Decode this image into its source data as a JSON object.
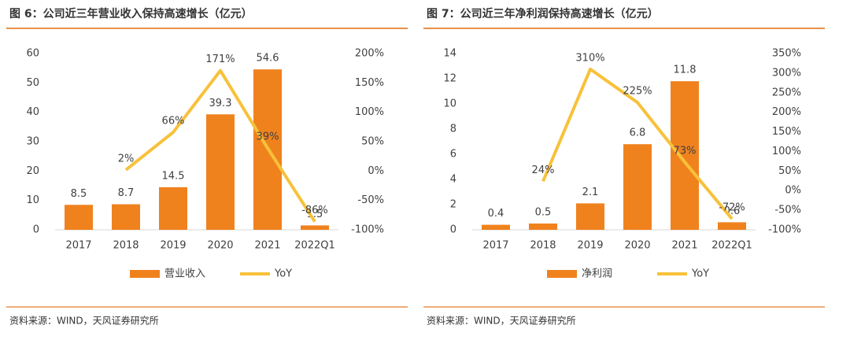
{
  "chart_data": [
    {
      "type": "bar",
      "title": "图 6：公司近三年营业收入保持高速增长（亿元）",
      "categories": [
        "2017",
        "2018",
        "2019",
        "2020",
        "2021",
        "2022Q1"
      ],
      "series": [
        {
          "name": "营业收入",
          "color": "#f0821e",
          "values": [
            8.5,
            8.7,
            14.5,
            39.3,
            54.6,
            1.5
          ]
        },
        {
          "name": "YoY",
          "type": "line",
          "axis": "y2",
          "color": "#f7c13a",
          "values": [
            null,
            2,
            66,
            171,
            39,
            -86
          ],
          "value_labels": [
            null,
            "2%",
            "66%",
            "171%",
            "39%",
            "-86%"
          ]
        }
      ],
      "ylim": [
        0,
        60
      ],
      "yticks": [
        0,
        10,
        20,
        30,
        40,
        50,
        60
      ],
      "y2lim": [
        -100,
        200
      ],
      "y2ticks": [
        {
          "value": -100,
          "label": "-100%"
        },
        {
          "value": -50,
          "label": "-50%"
        },
        {
          "value": 0,
          "label": "0%"
        },
        {
          "value": 50,
          "label": "50%"
        },
        {
          "value": 100,
          "label": "100%"
        },
        {
          "value": 150,
          "label": "150%"
        },
        {
          "value": 200,
          "label": "200%"
        }
      ],
      "source": "资料来源：WIND，天风证券研究所"
    },
    {
      "type": "bar",
      "title": "图 7：公司近三年净利润保持高速增长（亿元）",
      "categories": [
        "2017",
        "2018",
        "2019",
        "2020",
        "2021",
        "2022Q1"
      ],
      "series": [
        {
          "name": "净利润",
          "color": "#f0821e",
          "values": [
            0.4,
            0.5,
            2.1,
            6.8,
            11.8,
            0.6
          ]
        },
        {
          "name": "YoY",
          "type": "line",
          "axis": "y2",
          "color": "#f7c13a",
          "values": [
            null,
            24,
            310,
            225,
            73,
            -72
          ],
          "value_labels": [
            null,
            "24%",
            "310%",
            "225%",
            "73%",
            "-72%"
          ]
        }
      ],
      "ylim": [
        0,
        14
      ],
      "yticks": [
        0,
        2,
        4,
        6,
        8,
        10,
        12,
        14
      ],
      "y2lim": [
        -100,
        350
      ],
      "y2ticks": [
        {
          "value": -100,
          "label": "-100%"
        },
        {
          "value": -50,
          "label": "-50%"
        },
        {
          "value": 0,
          "label": "0%"
        },
        {
          "value": 50,
          "label": "50%"
        },
        {
          "value": 100,
          "label": "100%"
        },
        {
          "value": 150,
          "label": "150%"
        },
        {
          "value": 200,
          "label": "200%"
        },
        {
          "value": 250,
          "label": "250%"
        },
        {
          "value": 300,
          "label": "300%"
        },
        {
          "value": 350,
          "label": "350%"
        }
      ],
      "source": "资料来源：WIND，天风证券研究所"
    }
  ]
}
